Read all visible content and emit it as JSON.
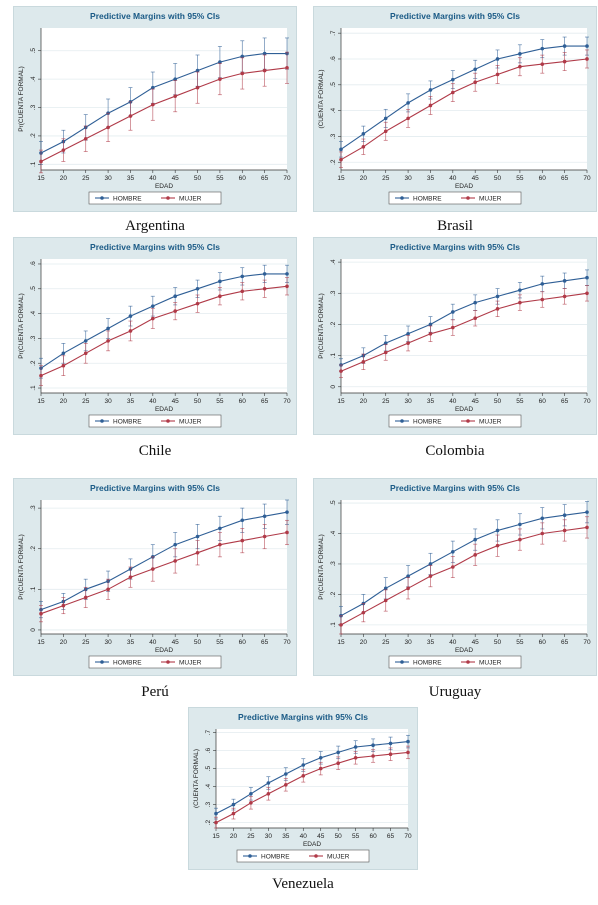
{
  "legend": {
    "series_a": "HOMBRE",
    "series_b": "MUJER"
  },
  "colors": {
    "hombre": "#2f5f96",
    "mujer": "#b03a48",
    "panel": "#dde9ec",
    "title": "#1a5a86"
  },
  "chart_data": [
    {
      "type": "line",
      "country": "Argentina",
      "title": "Predictive Margins with 95% CIs",
      "xlabel": "EDAD",
      "ylabel": "Pr(CUENTA FORMAL)",
      "x": [
        15,
        20,
        25,
        30,
        35,
        40,
        45,
        50,
        55,
        60,
        65,
        70
      ],
      "ylim": [
        0.08,
        0.58
      ],
      "yticks": [
        0.1,
        0.2,
        0.3,
        0.4,
        0.5
      ],
      "ytick_labels": [
        ".1",
        ".2",
        ".3",
        ".4",
        ".5"
      ],
      "series": [
        {
          "name": "HOMBRE",
          "values": [
            0.14,
            0.18,
            0.23,
            0.28,
            0.32,
            0.37,
            0.4,
            0.43,
            0.46,
            0.48,
            0.49,
            0.49
          ],
          "ci": [
            0.04,
            0.04,
            0.045,
            0.05,
            0.05,
            0.055,
            0.055,
            0.055,
            0.055,
            0.055,
            0.055,
            0.055
          ]
        },
        {
          "name": "MUJER",
          "values": [
            0.11,
            0.15,
            0.19,
            0.23,
            0.27,
            0.31,
            0.34,
            0.37,
            0.4,
            0.42,
            0.43,
            0.44
          ],
          "ci": [
            0.04,
            0.04,
            0.045,
            0.05,
            0.05,
            0.055,
            0.055,
            0.055,
            0.055,
            0.055,
            0.055,
            0.055
          ]
        }
      ]
    },
    {
      "type": "line",
      "country": "Brasil",
      "title": "Predictive Margins with 95% CIs",
      "xlabel": "EDAD",
      "ylabel": "(CUENTA FORMAL)",
      "x": [
        15,
        20,
        25,
        30,
        35,
        40,
        45,
        50,
        55,
        60,
        65,
        70
      ],
      "ylim": [
        0.17,
        0.72
      ],
      "yticks": [
        0.2,
        0.3,
        0.4,
        0.5,
        0.6,
        0.7
      ],
      "ytick_labels": [
        ".2",
        ".3",
        ".4",
        ".5",
        ".6",
        ".7"
      ],
      "series": [
        {
          "name": "HOMBRE",
          "values": [
            0.25,
            0.31,
            0.37,
            0.43,
            0.48,
            0.52,
            0.56,
            0.6,
            0.62,
            0.64,
            0.65,
            0.65
          ],
          "ci": [
            0.03,
            0.03,
            0.035,
            0.035,
            0.035,
            0.035,
            0.035,
            0.035,
            0.035,
            0.035,
            0.035,
            0.035
          ]
        },
        {
          "name": "MUJER",
          "values": [
            0.21,
            0.26,
            0.32,
            0.37,
            0.42,
            0.47,
            0.51,
            0.54,
            0.57,
            0.58,
            0.59,
            0.6
          ],
          "ci": [
            0.03,
            0.03,
            0.035,
            0.035,
            0.035,
            0.035,
            0.035,
            0.035,
            0.035,
            0.035,
            0.035,
            0.035
          ]
        }
      ]
    },
    {
      "type": "line",
      "country": "Chile",
      "title": "Predictive Margins with 95% CIs",
      "xlabel": "EDAD",
      "ylabel": "Pr(CUENTA FORMAL)",
      "x": [
        15,
        20,
        25,
        30,
        35,
        40,
        45,
        50,
        55,
        60,
        65,
        70
      ],
      "ylim": [
        0.08,
        0.62
      ],
      "yticks": [
        0.1,
        0.2,
        0.3,
        0.4,
        0.5,
        0.6
      ],
      "ytick_labels": [
        ".1",
        ".2",
        ".3",
        ".4",
        ".5",
        ".6"
      ],
      "series": [
        {
          "name": "HOMBRE",
          "values": [
            0.18,
            0.24,
            0.29,
            0.34,
            0.39,
            0.43,
            0.47,
            0.5,
            0.53,
            0.55,
            0.56,
            0.56
          ],
          "ci": [
            0.04,
            0.04,
            0.04,
            0.04,
            0.04,
            0.04,
            0.035,
            0.035,
            0.035,
            0.035,
            0.035,
            0.035
          ]
        },
        {
          "name": "MUJER",
          "values": [
            0.15,
            0.19,
            0.24,
            0.29,
            0.33,
            0.38,
            0.41,
            0.44,
            0.47,
            0.49,
            0.5,
            0.51
          ],
          "ci": [
            0.04,
            0.04,
            0.04,
            0.04,
            0.04,
            0.04,
            0.035,
            0.035,
            0.035,
            0.035,
            0.035,
            0.035
          ]
        }
      ]
    },
    {
      "type": "line",
      "country": "Colombia",
      "title": "Predictive Margins with 95% CIs",
      "xlabel": "EDAD",
      "ylabel": "Pr(CUENTA FORMAL)",
      "x": [
        15,
        20,
        25,
        30,
        35,
        40,
        45,
        50,
        55,
        60,
        65,
        70
      ],
      "ylim": [
        -0.02,
        0.41
      ],
      "yticks": [
        0,
        0.1,
        0.2,
        0.3,
        0.4
      ],
      "ytick_labels": [
        "0",
        ".1",
        ".2",
        ".3",
        ".4"
      ],
      "series": [
        {
          "name": "HOMBRE",
          "values": [
            0.07,
            0.1,
            0.14,
            0.17,
            0.2,
            0.24,
            0.27,
            0.29,
            0.31,
            0.33,
            0.34,
            0.35
          ],
          "ci": [
            0.02,
            0.025,
            0.025,
            0.025,
            0.025,
            0.025,
            0.025,
            0.025,
            0.025,
            0.025,
            0.025,
            0.025
          ]
        },
        {
          "name": "MUJER",
          "values": [
            0.05,
            0.08,
            0.11,
            0.14,
            0.17,
            0.19,
            0.22,
            0.25,
            0.27,
            0.28,
            0.29,
            0.3
          ],
          "ci": [
            0.02,
            0.025,
            0.025,
            0.025,
            0.025,
            0.025,
            0.025,
            0.025,
            0.025,
            0.025,
            0.025,
            0.025
          ]
        }
      ]
    },
    {
      "type": "line",
      "country": "Perú",
      "title": "Predictive Margins with 95% CIs",
      "xlabel": "EDAD",
      "ylabel": "Pr(CUENTA FORMAL)",
      "x": [
        15,
        20,
        25,
        30,
        35,
        40,
        45,
        50,
        55,
        60,
        65,
        70
      ],
      "ylim": [
        -0.01,
        0.32
      ],
      "yticks": [
        0,
        0.1,
        0.2,
        0.3
      ],
      "ytick_labels": [
        "0",
        ".1",
        ".2",
        ".3"
      ],
      "series": [
        {
          "name": "HOMBRE",
          "values": [
            0.05,
            0.07,
            0.1,
            0.12,
            0.15,
            0.18,
            0.21,
            0.23,
            0.25,
            0.27,
            0.28,
            0.29
          ],
          "ci": [
            0.02,
            0.02,
            0.025,
            0.025,
            0.025,
            0.03,
            0.03,
            0.03,
            0.03,
            0.03,
            0.03,
            0.03
          ]
        },
        {
          "name": "MUJER",
          "values": [
            0.04,
            0.06,
            0.08,
            0.1,
            0.13,
            0.15,
            0.17,
            0.19,
            0.21,
            0.22,
            0.23,
            0.24
          ],
          "ci": [
            0.02,
            0.02,
            0.025,
            0.025,
            0.025,
            0.03,
            0.03,
            0.03,
            0.03,
            0.03,
            0.03,
            0.03
          ]
        }
      ]
    },
    {
      "type": "line",
      "country": "Uruguay",
      "title": "Predictive Margins with 95% CIs",
      "xlabel": "EDAD",
      "ylabel": "Pr(CUENTA FORMAL)",
      "x": [
        15,
        20,
        25,
        30,
        35,
        40,
        45,
        50,
        55,
        60,
        65,
        70
      ],
      "ylim": [
        0.07,
        0.51
      ],
      "yticks": [
        0.1,
        0.2,
        0.3,
        0.4,
        0.5
      ],
      "ytick_labels": [
        ".1",
        ".2",
        ".3",
        ".4",
        ".5"
      ],
      "series": [
        {
          "name": "HOMBRE",
          "values": [
            0.13,
            0.17,
            0.22,
            0.26,
            0.3,
            0.34,
            0.38,
            0.41,
            0.43,
            0.45,
            0.46,
            0.47
          ],
          "ci": [
            0.03,
            0.03,
            0.035,
            0.035,
            0.035,
            0.035,
            0.035,
            0.035,
            0.035,
            0.035,
            0.035,
            0.035
          ]
        },
        {
          "name": "MUJER",
          "values": [
            0.1,
            0.14,
            0.18,
            0.22,
            0.26,
            0.29,
            0.33,
            0.36,
            0.38,
            0.4,
            0.41,
            0.42
          ],
          "ci": [
            0.03,
            0.03,
            0.035,
            0.035,
            0.035,
            0.035,
            0.035,
            0.035,
            0.035,
            0.035,
            0.035,
            0.035
          ]
        }
      ]
    },
    {
      "type": "line",
      "country": "Venezuela",
      "title": "Predictive Margins with 95% CIs",
      "xlabel": "EDAD",
      "ylabel": "(CUENTA FORMAL)",
      "x": [
        15,
        20,
        25,
        30,
        35,
        40,
        45,
        50,
        55,
        60,
        65,
        70
      ],
      "ylim": [
        0.17,
        0.72
      ],
      "yticks": [
        0.2,
        0.3,
        0.4,
        0.5,
        0.6,
        0.7
      ],
      "ytick_labels": [
        ".2",
        ".3",
        ".4",
        ".5",
        ".6",
        ".7"
      ],
      "series": [
        {
          "name": "HOMBRE",
          "values": [
            0.25,
            0.3,
            0.36,
            0.42,
            0.47,
            0.52,
            0.56,
            0.59,
            0.62,
            0.63,
            0.64,
            0.65
          ],
          "ci": [
            0.03,
            0.03,
            0.035,
            0.035,
            0.035,
            0.035,
            0.035,
            0.035,
            0.035,
            0.035,
            0.035,
            0.035
          ]
        },
        {
          "name": "MUJER",
          "values": [
            0.2,
            0.25,
            0.31,
            0.36,
            0.41,
            0.46,
            0.5,
            0.53,
            0.56,
            0.57,
            0.58,
            0.59
          ],
          "ci": [
            0.03,
            0.03,
            0.035,
            0.035,
            0.035,
            0.035,
            0.035,
            0.035,
            0.035,
            0.035,
            0.035,
            0.035
          ]
        }
      ]
    }
  ]
}
